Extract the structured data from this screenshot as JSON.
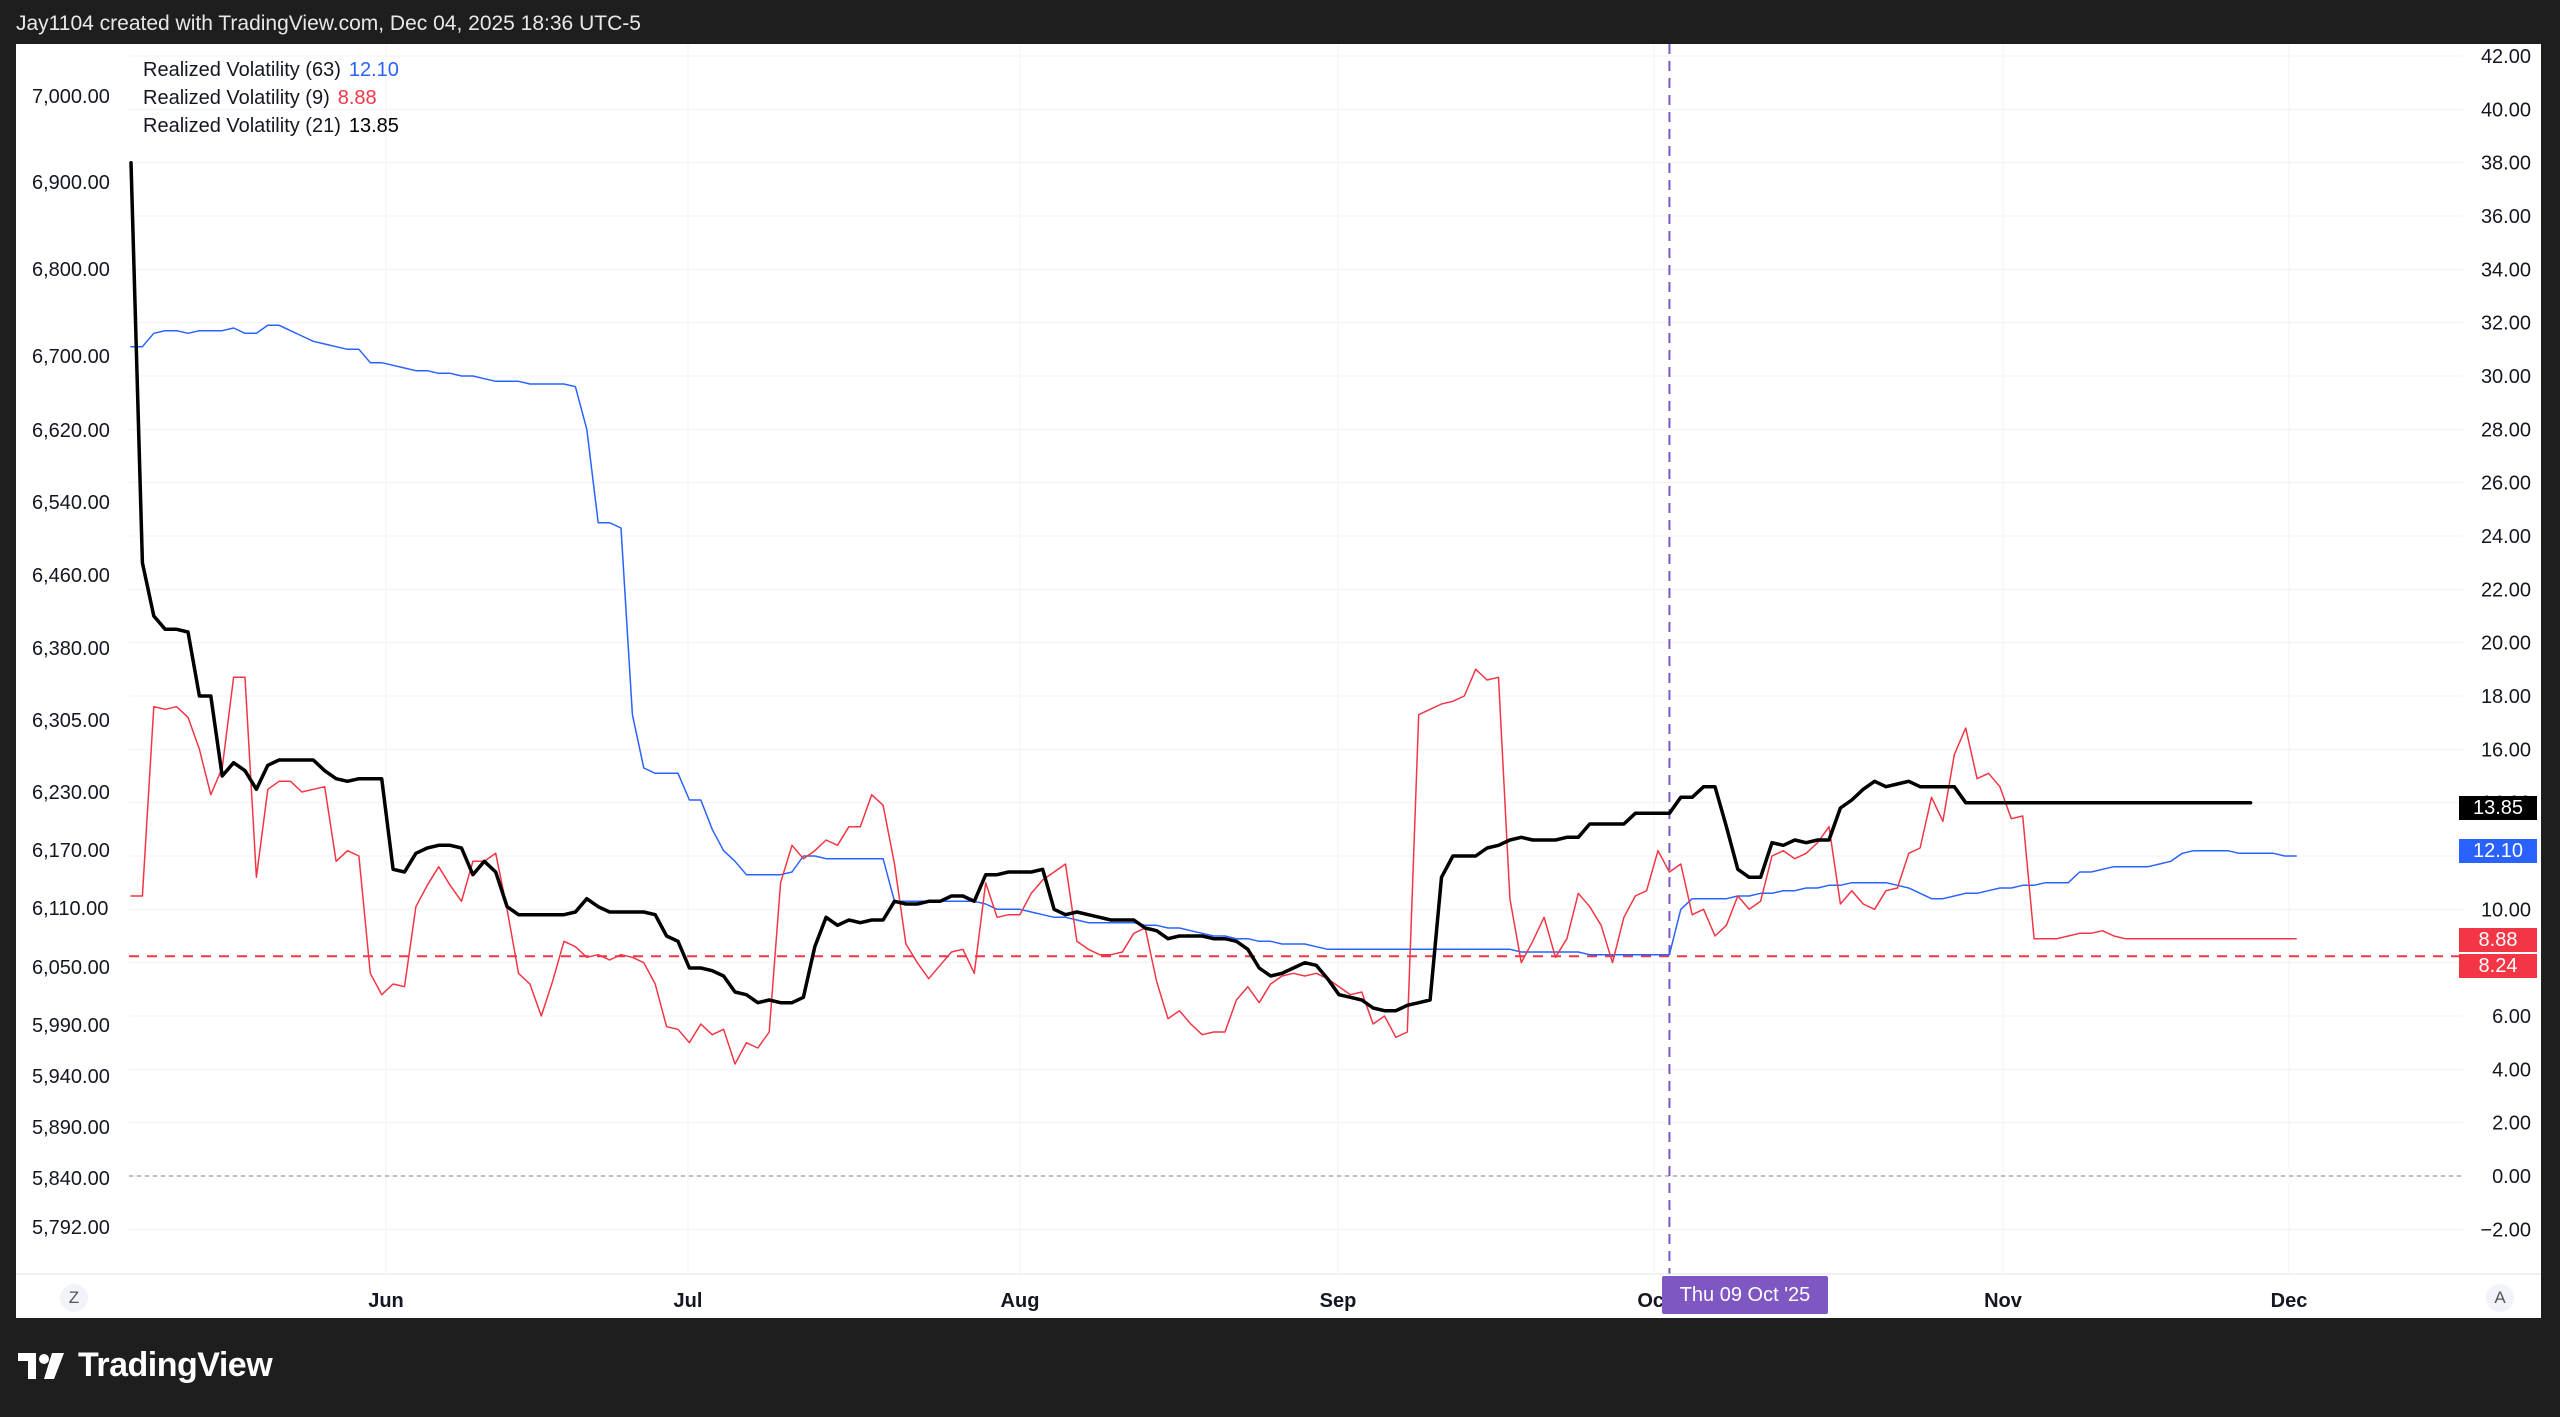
{
  "header": {
    "attribution": "Jay1104 created with TradingView.com, Dec 04, 2025 18:36 UTC-5"
  },
  "legend": [
    {
      "label": "Realized Volatility (63)",
      "value": "12.10",
      "color": "#2962ff"
    },
    {
      "label": "Realized Volatility (9)",
      "value": "8.88",
      "color": "#f23645"
    },
    {
      "label": "Realized Volatility (21)",
      "value": "13.85",
      "color": "#000000"
    }
  ],
  "footer": {
    "brand": "TradingView"
  },
  "buttons": {
    "zoom_label": "Z",
    "auto_label": "A"
  },
  "crosshair": {
    "date_label": "Thu 09 Oct '25"
  },
  "price_tags": [
    {
      "value": "13.85",
      "bg": "#000000"
    },
    {
      "value": "12.10",
      "bg": "#2962ff"
    },
    {
      "value": "8.88",
      "bg": "#f23645"
    },
    {
      "value": "8.24",
      "bg": "#f23645"
    }
  ],
  "chart_data": {
    "type": "line",
    "x_axis_labels": [
      "Jun",
      "Jul",
      "Aug",
      "Sep",
      "Oct",
      "Nov",
      "Dec"
    ],
    "left_axis_labels": [
      "7,000.00",
      "6,900.00",
      "6,800.00",
      "6,700.00",
      "6,620.00",
      "6,540.00",
      "6,460.00",
      "6,380.00",
      "6,305.00",
      "6,230.00",
      "6,170.00",
      "6,110.00",
      "6,050.00",
      "5,990.00",
      "5,940.00",
      "5,890.00",
      "5,840.00",
      "5,792.00"
    ],
    "right_axis_labels": [
      "42.00",
      "40.00",
      "38.00",
      "36.00",
      "34.00",
      "32.00",
      "30.00",
      "28.00",
      "26.00",
      "24.00",
      "22.00",
      "20.00",
      "18.00",
      "16.00",
      "14.00",
      "12.00",
      "10.00",
      "8.00",
      "6.00",
      "4.00",
      "2.00",
      "0.00",
      "−2.00"
    ],
    "y_range_right": [
      -4,
      43
    ],
    "zero_line": 0,
    "horizontal_reference": 8.24,
    "x_range": [
      0,
      192
    ],
    "crosshair_x": 135,
    "series": [
      {
        "name": "Realized Volatility (63)",
        "color": "#2962ff",
        "width": 1.5,
        "values": [
          31.1,
          31.1,
          31.6,
          31.7,
          31.7,
          31.6,
          31.7,
          31.7,
          31.7,
          31.8,
          31.6,
          31.6,
          31.9,
          31.9,
          31.7,
          31.5,
          31.3,
          31.2,
          31.1,
          31.0,
          31.0,
          30.5,
          30.5,
          30.4,
          30.3,
          30.2,
          30.2,
          30.1,
          30.1,
          30.0,
          30.0,
          29.9,
          29.8,
          29.8,
          29.8,
          29.7,
          29.7,
          29.7,
          29.7,
          29.6,
          28.0,
          24.5,
          24.5,
          24.3,
          17.3,
          15.3,
          15.1,
          15.1,
          15.1,
          14.1,
          14.1,
          13.0,
          12.2,
          11.8,
          11.3,
          11.3,
          11.3,
          11.3,
          11.4,
          12.0,
          12.0,
          11.9,
          11.9,
          11.9,
          11.9,
          11.9,
          11.9,
          10.3,
          10.3,
          10.3,
          10.3,
          10.3,
          10.3,
          10.3,
          10.3,
          10.2,
          10.0,
          10.0,
          10.0,
          9.9,
          9.8,
          9.7,
          9.7,
          9.6,
          9.5,
          9.5,
          9.5,
          9.5,
          9.5,
          9.4,
          9.4,
          9.3,
          9.3,
          9.2,
          9.1,
          9.0,
          9.0,
          8.9,
          8.9,
          8.8,
          8.8,
          8.7,
          8.7,
          8.7,
          8.6,
          8.5,
          8.5,
          8.5,
          8.5,
          8.5,
          8.5,
          8.5,
          8.5,
          8.5,
          8.5,
          8.5,
          8.5,
          8.5,
          8.5,
          8.5,
          8.5,
          8.5,
          8.4,
          8.4,
          8.4,
          8.4,
          8.4,
          8.4,
          8.3,
          8.3,
          8.3,
          8.3,
          8.3,
          8.3,
          8.3,
          8.3,
          10.0,
          10.4,
          10.4,
          10.4,
          10.4,
          10.5,
          10.5,
          10.6,
          10.6,
          10.7,
          10.7,
          10.8,
          10.8,
          10.9,
          10.9,
          11.0,
          11.0,
          11.0,
          11.0,
          10.9,
          10.8,
          10.6,
          10.4,
          10.4,
          10.5,
          10.6,
          10.6,
          10.7,
          10.8,
          10.8,
          10.9,
          10.9,
          11.0,
          11.0,
          11.0,
          11.4,
          11.4,
          11.5,
          11.6,
          11.6,
          11.6,
          11.6,
          11.7,
          11.8,
          12.1,
          12.2,
          12.2,
          12.2,
          12.2,
          12.1,
          12.1,
          12.1,
          12.1,
          12.0,
          12.0
        ]
      },
      {
        "name": "Realized Volatility (9)",
        "color": "#f23645",
        "width": 1.5,
        "values": [
          10.5,
          10.5,
          17.6,
          17.5,
          17.6,
          17.2,
          16.0,
          14.3,
          15.3,
          18.7,
          18.7,
          11.2,
          14.5,
          14.8,
          14.8,
          14.4,
          14.5,
          14.6,
          11.8,
          12.2,
          12.0,
          7.6,
          6.8,
          7.2,
          7.1,
          10.1,
          10.9,
          11.6,
          10.9,
          10.3,
          11.8,
          11.8,
          12.1,
          10.0,
          7.6,
          7.2,
          6.0,
          7.3,
          8.8,
          8.6,
          8.2,
          8.3,
          8.1,
          8.3,
          8.2,
          8.0,
          7.2,
          5.6,
          5.5,
          5.0,
          5.7,
          5.3,
          5.5,
          4.2,
          5.0,
          4.8,
          5.4,
          11.0,
          12.4,
          11.9,
          12.2,
          12.6,
          12.4,
          13.1,
          13.1,
          14.3,
          13.9,
          11.7,
          8.7,
          8.0,
          7.4,
          7.9,
          8.4,
          8.5,
          7.6,
          11.0,
          9.7,
          9.8,
          9.8,
          10.6,
          11.1,
          11.4,
          11.7,
          8.8,
          8.5,
          8.3,
          8.3,
          8.4,
          9.1,
          9.3,
          7.3,
          5.9,
          6.2,
          5.7,
          5.3,
          5.4,
          5.4,
          6.6,
          7.1,
          6.5,
          7.2,
          7.5,
          7.6,
          7.5,
          7.6,
          7.4,
          7.1,
          6.8,
          6.9,
          5.7,
          6.0,
          5.2,
          5.4,
          17.3,
          17.5,
          17.7,
          17.8,
          18.0,
          19.0,
          18.6,
          18.7,
          10.4,
          8.0,
          8.8,
          9.7,
          8.2,
          8.9,
          10.6,
          10.1,
          9.4,
          8.0,
          9.7,
          10.5,
          10.7,
          12.2,
          11.4,
          11.7,
          9.8,
          10.0,
          9.0,
          9.4,
          10.5,
          10.0,
          10.3,
          12.0,
          12.2,
          11.9,
          12.1,
          12.5,
          13.1,
          10.2,
          10.7,
          10.2,
          10.0,
          10.7,
          10.8,
          12.1,
          12.3,
          14.2,
          13.3,
          15.8,
          16.8,
          14.9,
          15.1,
          14.6,
          13.4,
          13.5,
          8.9,
          8.9,
          8.9,
          9.0,
          9.1,
          9.1,
          9.2,
          9.0,
          8.9,
          8.9,
          8.9,
          8.9,
          8.9,
          8.9,
          8.9,
          8.9,
          8.9,
          8.9,
          8.9,
          8.9,
          8.9,
          8.9,
          8.9,
          8.9
        ]
      },
      {
        "name": "Realized Volatility (21)",
        "color": "#000000",
        "width": 3.5,
        "values": [
          38.0,
          23.0,
          21.0,
          20.5,
          20.5,
          20.4,
          18.0,
          18.0,
          15.0,
          15.5,
          15.2,
          14.5,
          15.4,
          15.6,
          15.6,
          15.6,
          15.6,
          15.2,
          14.9,
          14.8,
          14.9,
          14.9,
          14.9,
          11.5,
          11.4,
          12.1,
          12.3,
          12.4,
          12.4,
          12.3,
          11.3,
          11.8,
          11.4,
          10.1,
          9.8,
          9.8,
          9.8,
          9.8,
          9.8,
          9.9,
          10.4,
          10.1,
          9.9,
          9.9,
          9.9,
          9.9,
          9.8,
          9.0,
          8.8,
          7.8,
          7.8,
          7.7,
          7.5,
          6.9,
          6.8,
          6.5,
          6.6,
          6.5,
          6.5,
          6.7,
          8.6,
          9.7,
          9.4,
          9.6,
          9.5,
          9.6,
          9.6,
          10.3,
          10.2,
          10.2,
          10.3,
          10.3,
          10.5,
          10.5,
          10.3,
          11.3,
          11.3,
          11.4,
          11.4,
          11.4,
          11.5,
          10.0,
          9.8,
          9.9,
          9.8,
          9.7,
          9.6,
          9.6,
          9.6,
          9.3,
          9.2,
          8.9,
          9.0,
          9.0,
          9.0,
          8.9,
          8.9,
          8.8,
          8.5,
          7.8,
          7.5,
          7.6,
          7.8,
          8.0,
          7.9,
          7.4,
          6.8,
          6.7,
          6.6,
          6.3,
          6.2,
          6.2,
          6.4,
          6.5,
          6.6,
          11.2,
          12.0,
          12.0,
          12.0,
          12.3,
          12.4,
          12.6,
          12.7,
          12.6,
          12.6,
          12.6,
          12.7,
          12.7,
          13.2,
          13.2,
          13.2,
          13.2,
          13.6,
          13.6,
          13.6,
          13.6,
          14.2,
          14.2,
          14.6,
          14.6,
          13.1,
          11.5,
          11.2,
          11.2,
          12.5,
          12.4,
          12.6,
          12.5,
          12.6,
          12.6,
          13.8,
          14.1,
          14.5,
          14.8,
          14.6,
          14.7,
          14.8,
          14.6,
          14.6,
          14.6,
          14.6,
          14.0,
          14.0,
          14.0,
          14.0,
          14.0,
          14.0,
          14.0,
          14.0,
          14.0,
          14.0,
          14.0,
          14.0,
          14.0,
          14.0,
          14.0,
          14.0,
          14.0,
          14.0,
          14.0,
          14.0,
          14.0,
          14.0,
          14.0,
          14.0,
          14.0,
          14.0
        ]
      }
    ]
  }
}
